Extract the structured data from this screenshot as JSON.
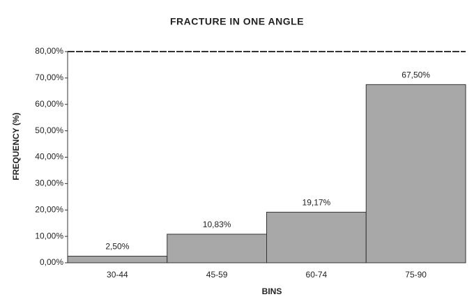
{
  "chart_data": {
    "type": "bar",
    "title": "FRACTURE IN ONE ANGLE",
    "x_label": "BINS",
    "y_label": "FREQUENCY (%)",
    "categories": [
      "30-44",
      "45-59",
      "60-74",
      "75-90"
    ],
    "values": [
      2.5,
      10.83,
      19.17,
      67.5
    ],
    "value_labels": [
      "2,50%",
      "10,83%",
      "19,17%",
      "67,50%"
    ],
    "color": "#a8a8a8",
    "ylim": [
      0,
      80
    ],
    "yticks": [
      {
        "value": 0,
        "label": "0,00%"
      },
      {
        "value": 10,
        "label": "10,00%"
      },
      {
        "value": 20,
        "label": "20,00%"
      },
      {
        "value": 30,
        "label": "30,00%"
      },
      {
        "value": 40,
        "label": "40,00%"
      },
      {
        "value": 50,
        "label": "50,00%"
      },
      {
        "value": 60,
        "label": "60,00%"
      },
      {
        "value": 70,
        "label": "70,00%"
      },
      {
        "value": 80,
        "label": "80,00%"
      }
    ],
    "grid": false
  }
}
